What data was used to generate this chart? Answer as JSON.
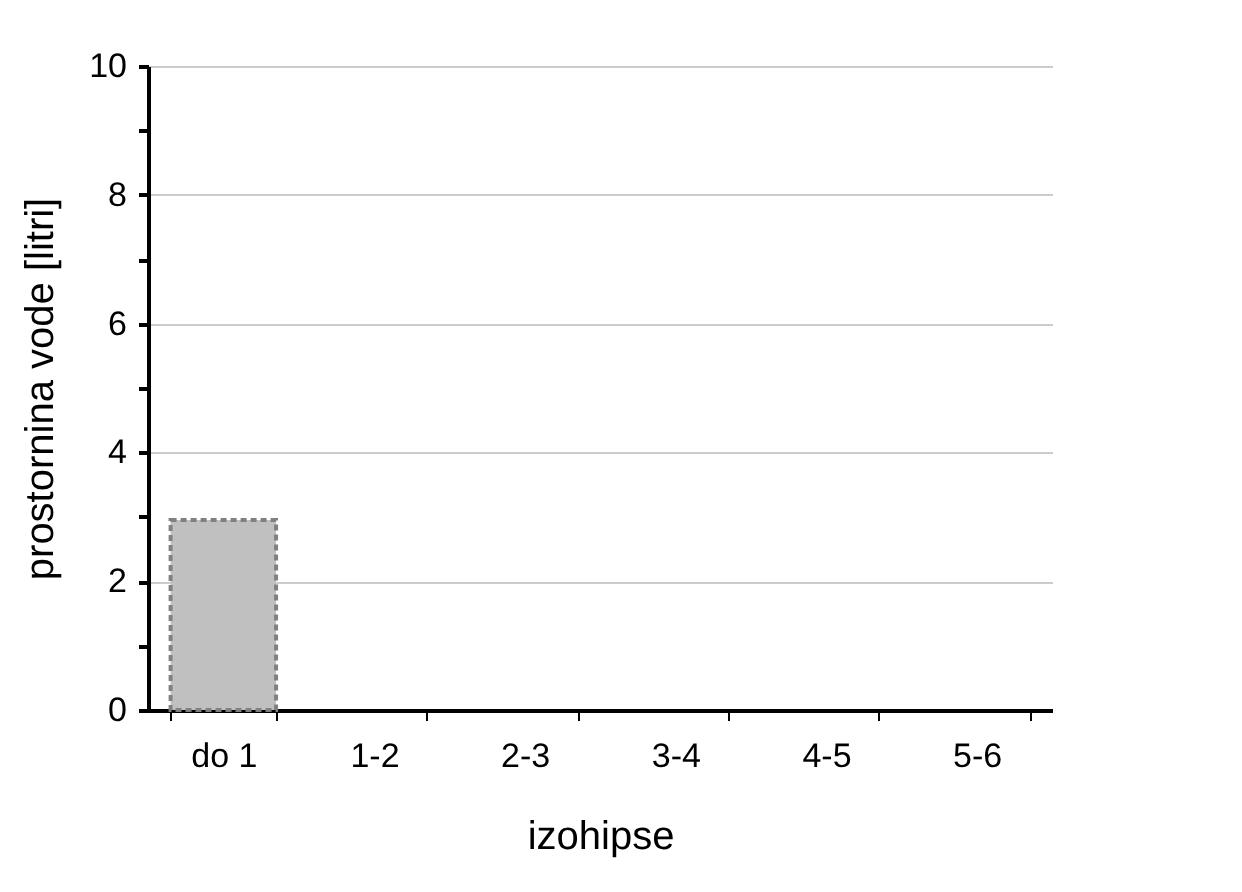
{
  "chart_data": {
    "type": "bar",
    "xlabel": "izohipse",
    "ylabel": "prostornina vode [litri]",
    "categories": [
      "do 1",
      "1-2",
      "2-3",
      "3-4",
      "4-5",
      "5-6"
    ],
    "series": [
      {
        "color": "#c0c0c0",
        "values": [
          2.95,
          null,
          null,
          null,
          null,
          null
        ]
      }
    ],
    "ylim": [
      0,
      10
    ],
    "yticks": [
      0,
      {
        "value": 1,
        "label": null
      },
      2,
      {
        "value": 3,
        "label": null
      },
      4,
      {
        "value": 5,
        "label": null
      },
      6,
      {
        "value": 7,
        "label": null
      },
      8,
      {
        "value": 9,
        "label": null
      },
      10
    ],
    "grid": "y",
    "legend": false
  }
}
